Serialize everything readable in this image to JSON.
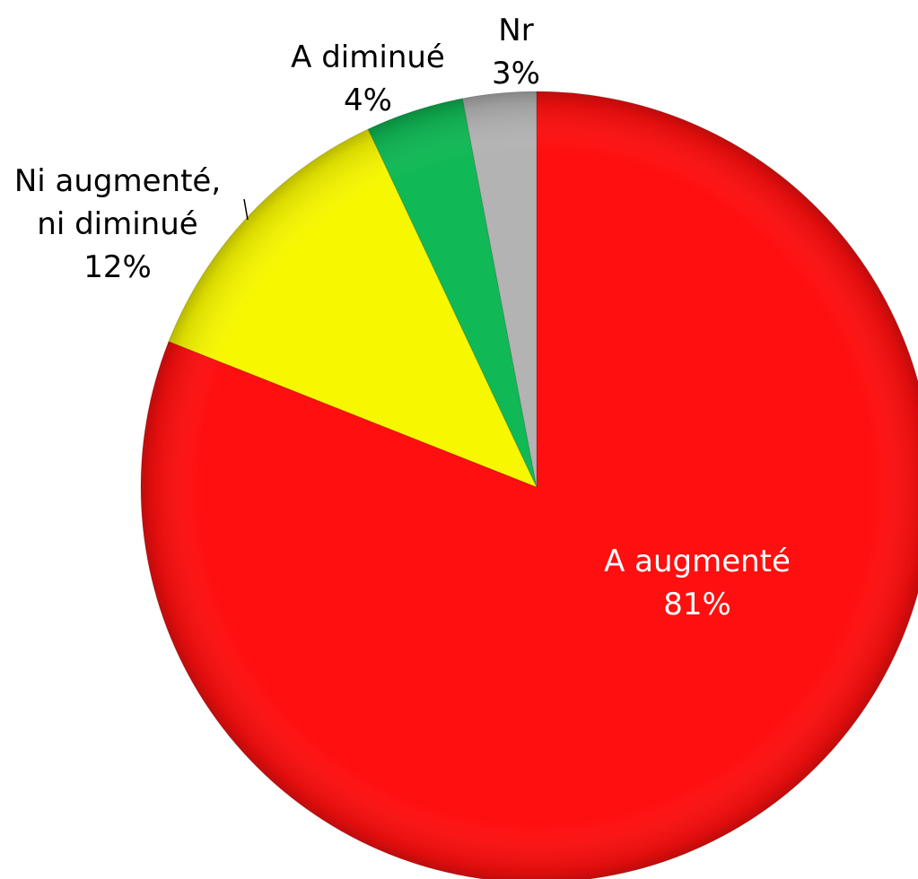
{
  "chart_data": {
    "type": "pie",
    "categories": [
      "A augmenté",
      "Ni augmenté, ni diminué",
      "A diminué",
      "Nr"
    ],
    "values": [
      81,
      12,
      4,
      3
    ],
    "value_labels": [
      "81%",
      "12%",
      "4%",
      "3%"
    ],
    "colors": [
      "#ff0f0f",
      "#f7f700",
      "#10b955",
      "#b3b3b3"
    ]
  }
}
